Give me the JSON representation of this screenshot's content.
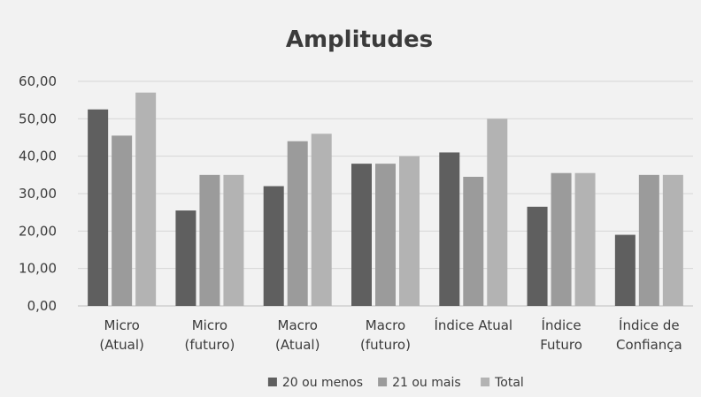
{
  "chart_data": {
    "type": "bar",
    "title": "Amplitudes",
    "xlabel": "",
    "ylabel": "",
    "ylim": [
      0,
      60
    ],
    "yticks": [
      "0,00",
      "10,00",
      "20,00",
      "30,00",
      "40,00",
      "50,00",
      "60,00"
    ],
    "grid": true,
    "legend_position": "bottom",
    "categories": [
      [
        "Micro",
        "(Atual)"
      ],
      [
        "Micro",
        "(futuro)"
      ],
      [
        "Macro",
        "(Atual)"
      ],
      [
        "Macro",
        "(futuro)"
      ],
      [
        "Índice Atual"
      ],
      [
        "Índice",
        "Futuro"
      ],
      [
        "Índice de",
        "Confiança"
      ]
    ],
    "series": [
      {
        "name": "20 ou menos",
        "color": "#5f5f5f",
        "values": [
          52.5,
          25.5,
          32.0,
          38.0,
          41.0,
          26.5,
          19.0
        ]
      },
      {
        "name": "21 ou mais",
        "color": "#9b9b9b",
        "values": [
          45.5,
          35.0,
          44.0,
          38.0,
          34.5,
          35.5,
          35.0
        ]
      },
      {
        "name": "Total",
        "color": "#b3b3b3",
        "values": [
          57.0,
          35.0,
          46.0,
          40.0,
          50.0,
          35.5,
          35.0
        ]
      }
    ]
  }
}
